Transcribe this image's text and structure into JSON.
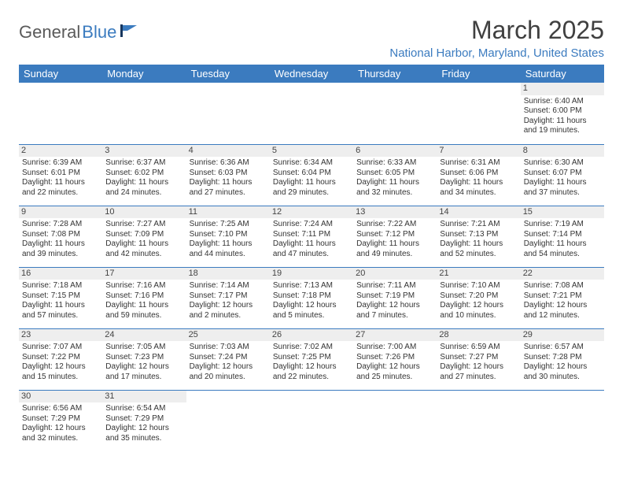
{
  "logo": {
    "part1": "General",
    "part2": "Blue"
  },
  "title": "March 2025",
  "location": "National Harbor, Maryland, United States",
  "colors": {
    "header_bg": "#3b7bbf",
    "header_text": "#ffffff",
    "daynum_bg": "#eeeeee",
    "cell_border": "#3b7bbf",
    "body_text": "#333333",
    "title_text": "#404040"
  },
  "weekdays": [
    "Sunday",
    "Monday",
    "Tuesday",
    "Wednesday",
    "Thursday",
    "Friday",
    "Saturday"
  ],
  "weeks": [
    [
      null,
      null,
      null,
      null,
      null,
      null,
      {
        "n": "1",
        "sr": "Sunrise: 6:40 AM",
        "ss": "Sunset: 6:00 PM",
        "d1": "Daylight: 11 hours",
        "d2": "and 19 minutes."
      }
    ],
    [
      {
        "n": "2",
        "sr": "Sunrise: 6:39 AM",
        "ss": "Sunset: 6:01 PM",
        "d1": "Daylight: 11 hours",
        "d2": "and 22 minutes."
      },
      {
        "n": "3",
        "sr": "Sunrise: 6:37 AM",
        "ss": "Sunset: 6:02 PM",
        "d1": "Daylight: 11 hours",
        "d2": "and 24 minutes."
      },
      {
        "n": "4",
        "sr": "Sunrise: 6:36 AM",
        "ss": "Sunset: 6:03 PM",
        "d1": "Daylight: 11 hours",
        "d2": "and 27 minutes."
      },
      {
        "n": "5",
        "sr": "Sunrise: 6:34 AM",
        "ss": "Sunset: 6:04 PM",
        "d1": "Daylight: 11 hours",
        "d2": "and 29 minutes."
      },
      {
        "n": "6",
        "sr": "Sunrise: 6:33 AM",
        "ss": "Sunset: 6:05 PM",
        "d1": "Daylight: 11 hours",
        "d2": "and 32 minutes."
      },
      {
        "n": "7",
        "sr": "Sunrise: 6:31 AM",
        "ss": "Sunset: 6:06 PM",
        "d1": "Daylight: 11 hours",
        "d2": "and 34 minutes."
      },
      {
        "n": "8",
        "sr": "Sunrise: 6:30 AM",
        "ss": "Sunset: 6:07 PM",
        "d1": "Daylight: 11 hours",
        "d2": "and 37 minutes."
      }
    ],
    [
      {
        "n": "9",
        "sr": "Sunrise: 7:28 AM",
        "ss": "Sunset: 7:08 PM",
        "d1": "Daylight: 11 hours",
        "d2": "and 39 minutes."
      },
      {
        "n": "10",
        "sr": "Sunrise: 7:27 AM",
        "ss": "Sunset: 7:09 PM",
        "d1": "Daylight: 11 hours",
        "d2": "and 42 minutes."
      },
      {
        "n": "11",
        "sr": "Sunrise: 7:25 AM",
        "ss": "Sunset: 7:10 PM",
        "d1": "Daylight: 11 hours",
        "d2": "and 44 minutes."
      },
      {
        "n": "12",
        "sr": "Sunrise: 7:24 AM",
        "ss": "Sunset: 7:11 PM",
        "d1": "Daylight: 11 hours",
        "d2": "and 47 minutes."
      },
      {
        "n": "13",
        "sr": "Sunrise: 7:22 AM",
        "ss": "Sunset: 7:12 PM",
        "d1": "Daylight: 11 hours",
        "d2": "and 49 minutes."
      },
      {
        "n": "14",
        "sr": "Sunrise: 7:21 AM",
        "ss": "Sunset: 7:13 PM",
        "d1": "Daylight: 11 hours",
        "d2": "and 52 minutes."
      },
      {
        "n": "15",
        "sr": "Sunrise: 7:19 AM",
        "ss": "Sunset: 7:14 PM",
        "d1": "Daylight: 11 hours",
        "d2": "and 54 minutes."
      }
    ],
    [
      {
        "n": "16",
        "sr": "Sunrise: 7:18 AM",
        "ss": "Sunset: 7:15 PM",
        "d1": "Daylight: 11 hours",
        "d2": "and 57 minutes."
      },
      {
        "n": "17",
        "sr": "Sunrise: 7:16 AM",
        "ss": "Sunset: 7:16 PM",
        "d1": "Daylight: 11 hours",
        "d2": "and 59 minutes."
      },
      {
        "n": "18",
        "sr": "Sunrise: 7:14 AM",
        "ss": "Sunset: 7:17 PM",
        "d1": "Daylight: 12 hours",
        "d2": "and 2 minutes."
      },
      {
        "n": "19",
        "sr": "Sunrise: 7:13 AM",
        "ss": "Sunset: 7:18 PM",
        "d1": "Daylight: 12 hours",
        "d2": "and 5 minutes."
      },
      {
        "n": "20",
        "sr": "Sunrise: 7:11 AM",
        "ss": "Sunset: 7:19 PM",
        "d1": "Daylight: 12 hours",
        "d2": "and 7 minutes."
      },
      {
        "n": "21",
        "sr": "Sunrise: 7:10 AM",
        "ss": "Sunset: 7:20 PM",
        "d1": "Daylight: 12 hours",
        "d2": "and 10 minutes."
      },
      {
        "n": "22",
        "sr": "Sunrise: 7:08 AM",
        "ss": "Sunset: 7:21 PM",
        "d1": "Daylight: 12 hours",
        "d2": "and 12 minutes."
      }
    ],
    [
      {
        "n": "23",
        "sr": "Sunrise: 7:07 AM",
        "ss": "Sunset: 7:22 PM",
        "d1": "Daylight: 12 hours",
        "d2": "and 15 minutes."
      },
      {
        "n": "24",
        "sr": "Sunrise: 7:05 AM",
        "ss": "Sunset: 7:23 PM",
        "d1": "Daylight: 12 hours",
        "d2": "and 17 minutes."
      },
      {
        "n": "25",
        "sr": "Sunrise: 7:03 AM",
        "ss": "Sunset: 7:24 PM",
        "d1": "Daylight: 12 hours",
        "d2": "and 20 minutes."
      },
      {
        "n": "26",
        "sr": "Sunrise: 7:02 AM",
        "ss": "Sunset: 7:25 PM",
        "d1": "Daylight: 12 hours",
        "d2": "and 22 minutes."
      },
      {
        "n": "27",
        "sr": "Sunrise: 7:00 AM",
        "ss": "Sunset: 7:26 PM",
        "d1": "Daylight: 12 hours",
        "d2": "and 25 minutes."
      },
      {
        "n": "28",
        "sr": "Sunrise: 6:59 AM",
        "ss": "Sunset: 7:27 PM",
        "d1": "Daylight: 12 hours",
        "d2": "and 27 minutes."
      },
      {
        "n": "29",
        "sr": "Sunrise: 6:57 AM",
        "ss": "Sunset: 7:28 PM",
        "d1": "Daylight: 12 hours",
        "d2": "and 30 minutes."
      }
    ],
    [
      {
        "n": "30",
        "sr": "Sunrise: 6:56 AM",
        "ss": "Sunset: 7:29 PM",
        "d1": "Daylight: 12 hours",
        "d2": "and 32 minutes."
      },
      {
        "n": "31",
        "sr": "Sunrise: 6:54 AM",
        "ss": "Sunset: 7:29 PM",
        "d1": "Daylight: 12 hours",
        "d2": "and 35 minutes."
      },
      null,
      null,
      null,
      null,
      null
    ]
  ]
}
